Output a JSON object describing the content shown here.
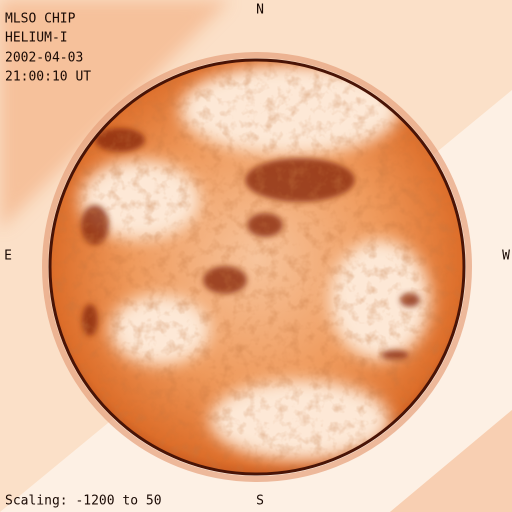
{
  "header": {
    "lines": [
      "MLSO CHIP",
      "HELIUM-I",
      "2002-04-03",
      "21:00:10 UT"
    ]
  },
  "compass": {
    "north": "N",
    "east": "E",
    "west": "W",
    "south": "S"
  },
  "footer": {
    "scaling": "Scaling: -1200 to 50"
  }
}
